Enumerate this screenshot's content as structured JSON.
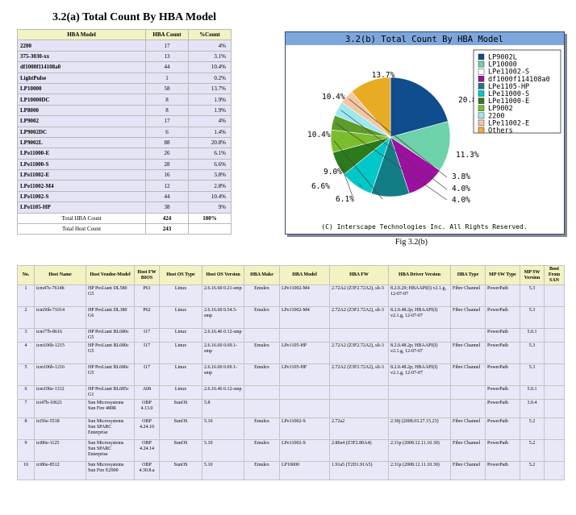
{
  "summary": {
    "title": "3.2(a)  Total Count By HBA Model",
    "headers": [
      "HBA Model",
      "HBA Count",
      "%Count"
    ],
    "rows": [
      {
        "model": "2200",
        "count": "17",
        "pct": "4%"
      },
      {
        "model": "375-3030-xx",
        "count": "13",
        "pct": "3.1%"
      },
      {
        "model": "df1000f114108a0",
        "count": "44",
        "pct": "10.4%"
      },
      {
        "model": "LightPulse",
        "count": "1",
        "pct": "0.2%"
      },
      {
        "model": "LP10000",
        "count": "58",
        "pct": "13.7%"
      },
      {
        "model": "LP10000DC",
        "count": "8",
        "pct": "1.9%"
      },
      {
        "model": "LP8000",
        "count": "8",
        "pct": "1.9%"
      },
      {
        "model": "LP9002",
        "count": "17",
        "pct": "4%"
      },
      {
        "model": "LP9002DC",
        "count": "6",
        "pct": "1.4%"
      },
      {
        "model": "LP9002L",
        "count": "88",
        "pct": "20.8%"
      },
      {
        "model": "LPe11000-E",
        "count": "26",
        "pct": "6.1%"
      },
      {
        "model": "LPe11000-S",
        "count": "28",
        "pct": "6.6%"
      },
      {
        "model": "LPe11002-E",
        "count": "16",
        "pct": "3.8%"
      },
      {
        "model": "LPe11002-M4",
        "count": "12",
        "pct": "2.8%"
      },
      {
        "model": "LPe11002-S",
        "count": "44",
        "pct": "10.4%"
      },
      {
        "model": "LPe1105-HP",
        "count": "38",
        "pct": "9%"
      }
    ],
    "total_hba_label": "Total HBA Count",
    "total_hba": "424",
    "total_hba_pct": "100%",
    "total_host_label": "Total Host Count",
    "total_host": "243"
  },
  "chart_data": {
    "type": "pie",
    "title": "3.2(b) Total Count By HBA Model",
    "footer": "(C) Interscape Technologies Inc. All Rights Reserved.",
    "categories": [
      "LP9002L",
      "LP10000",
      "LPe11002-S",
      "df1000f114108a0",
      "LPe1105-HP",
      "LPe11000-S",
      "LPe11000-E",
      "LP9002",
      "2200",
      "LPe11002-E",
      "Others"
    ],
    "values": [
      20.8,
      13.7,
      10.4,
      10.4,
      9.0,
      6.6,
      6.1,
      4.0,
      4.0,
      3.8,
      11.3
    ],
    "labels": [
      "20.8%",
      "13.7%",
      "10.4%",
      "10.4%",
      "9.0%",
      "6.6%",
      "6.1%",
      "4.0%",
      "4.0%",
      "3.8%",
      "11.3%"
    ],
    "colors": [
      "#0f4d8c",
      "#6dd1a9",
      "#9c0f9f",
      "#137d85",
      "#00c8c8",
      "#2c7a1c",
      "#7bbd2d",
      "#9de8ee",
      "#f4c6a0",
      "#f0a840"
    ],
    "legend_colors": [
      "#0f4d8c",
      "#6dd1a9",
      "#ffffff",
      "#9c0f9f",
      "#137d85",
      "#00c8c8",
      "#2c7a1c",
      "#7bbd2d",
      "#9de8ee",
      "#f4c6a0",
      "#f0a840"
    ],
    "slice_colors": [
      "#0f4d8c",
      "#6dd1a9",
      "#9c0f9f",
      "#137d85",
      "#00c8c8",
      "#2c7a1c",
      "#7bbd2d",
      "#5c9c2a",
      "#9de8ee",
      "#f4c6a0",
      "#e8ac24"
    ],
    "legend_position": "right",
    "title_bar_color": "#7da7dc"
  },
  "figure_caption": "Fig 3.2(b)",
  "detail": {
    "headers": [
      "No.",
      "Host Name",
      "Host Vendor-Model",
      "Host FW BIOS",
      "Host OS Type",
      "Host OS Version",
      "HBA Make",
      "HBA Model",
      "HBA FW",
      "HBA Driver Version",
      "HBA Type",
      "MP SW Type",
      "MP SW Version",
      "Boot From SAN"
    ],
    "rows": [
      [
        "1",
        "icm47e-7614b",
        "HP ProLiant DL580 G5",
        "P61",
        "Linux",
        "2.6.16.60 0.21-smp",
        "Emulex",
        "LPe11002-M4",
        "2.72A2 (Z3F2.72A2), sli-3",
        "8.2.0.29; HBAAPI(I) v2.1.g, 12-07-07",
        "Fibre Channel",
        "PowerPath",
        "5.3",
        ""
      ],
      [
        "2",
        "icm56b-71014",
        "HP ProLiant DL380 G6",
        "P62",
        "Linux",
        "2.6.16.60 0.54.5-smp",
        "Emulex",
        "LPe11002-M4",
        "2.72A2 (Z3F2.72A2), sli-3",
        "8.2.0.48.2p; HBAAPI(I) v2.1.g, 12-07-07",
        "Fibre Channel",
        "PowerPath",
        "5.3",
        ""
      ],
      [
        "3",
        "icm77b-8616",
        "HP ProLiant BL680c G5",
        "I17",
        "Linux",
        "2.6.16.46 0.12-smp",
        "",
        "",
        "",
        "",
        "",
        "PowerPath",
        "5.0.1",
        ""
      ],
      [
        "4",
        "icm106b-1215",
        "HP ProLiant BL680c G5",
        "I17",
        "Linux",
        "2.6.16.60 0.69.1-smp",
        "Emulex",
        "LPe1105-HP",
        "2.72A2 (Z3F2.72A2), sli-3",
        "8.2.0.48.2p; HBAAPI(I) v2.1.g, 12-07-07",
        "Fibre Channel",
        "PowerPath",
        "5.3",
        ""
      ],
      [
        "5",
        "icm106b-1216",
        "HP ProLiant BL680c G5",
        "I17",
        "Linux",
        "2.6.16.60 0.69.1-smp",
        "Emulex",
        "LPe1105-HP",
        "2.72A2 (Z3F2.72A2), sli-3",
        "8.2.0.48.2p; HBAAPI(I) v2.1.g, 12-07-07",
        "Fibre Channel",
        "PowerPath",
        "5.3",
        ""
      ],
      [
        "6",
        "icm106e-1312",
        "HP ProLiant BL685c G1",
        "A08",
        "Linux",
        "2.6.16.46 0.12-smp",
        "",
        "",
        "",
        "",
        "",
        "PowerPath",
        "5.0.1",
        ""
      ],
      [
        "7",
        "ict47b-10621",
        "Sun Microsystems Sun Fire 480R",
        "OBP 4.13.0",
        "SunOS",
        "5.8",
        "",
        "",
        "",
        "",
        "",
        "PowerPath",
        "3.0.4",
        ""
      ],
      [
        "8",
        "ict56e-5518",
        "Sun Microsystems Sun SPARC Enterprise",
        "OBP 4.24.10",
        "SunOS",
        "5.10",
        "Emulex",
        "LPe11002-S",
        "2.72a2",
        "2.30j (2008.03.27.15.23)",
        "Fibre Channel",
        "PowerPath",
        "5.2",
        ""
      ],
      [
        "9",
        "ict86e-1125",
        "Sun Microsystems Sun SPARC Enterprise",
        "OBP 4.24.14",
        "SunOS",
        "5.10",
        "Emulex",
        "LPe11002-S",
        "2.80a4 (Z3F2.80A4)",
        "2.31p (2008.12.11.10.30)",
        "Fibre Channel",
        "PowerPath",
        "5.2",
        ""
      ],
      [
        "10",
        "ict86e-8512",
        "Sun Microsystems Sun Fire E2900",
        "OBP 4.30.8.a",
        "SunOS",
        "5.10",
        "Emulex",
        "LP10000",
        "1.91a5 (T2D1.91A5)",
        "2.31p (2008.12.11.10.30)",
        "Fibre Channel",
        "PowerPath",
        "5.2",
        ""
      ]
    ]
  }
}
